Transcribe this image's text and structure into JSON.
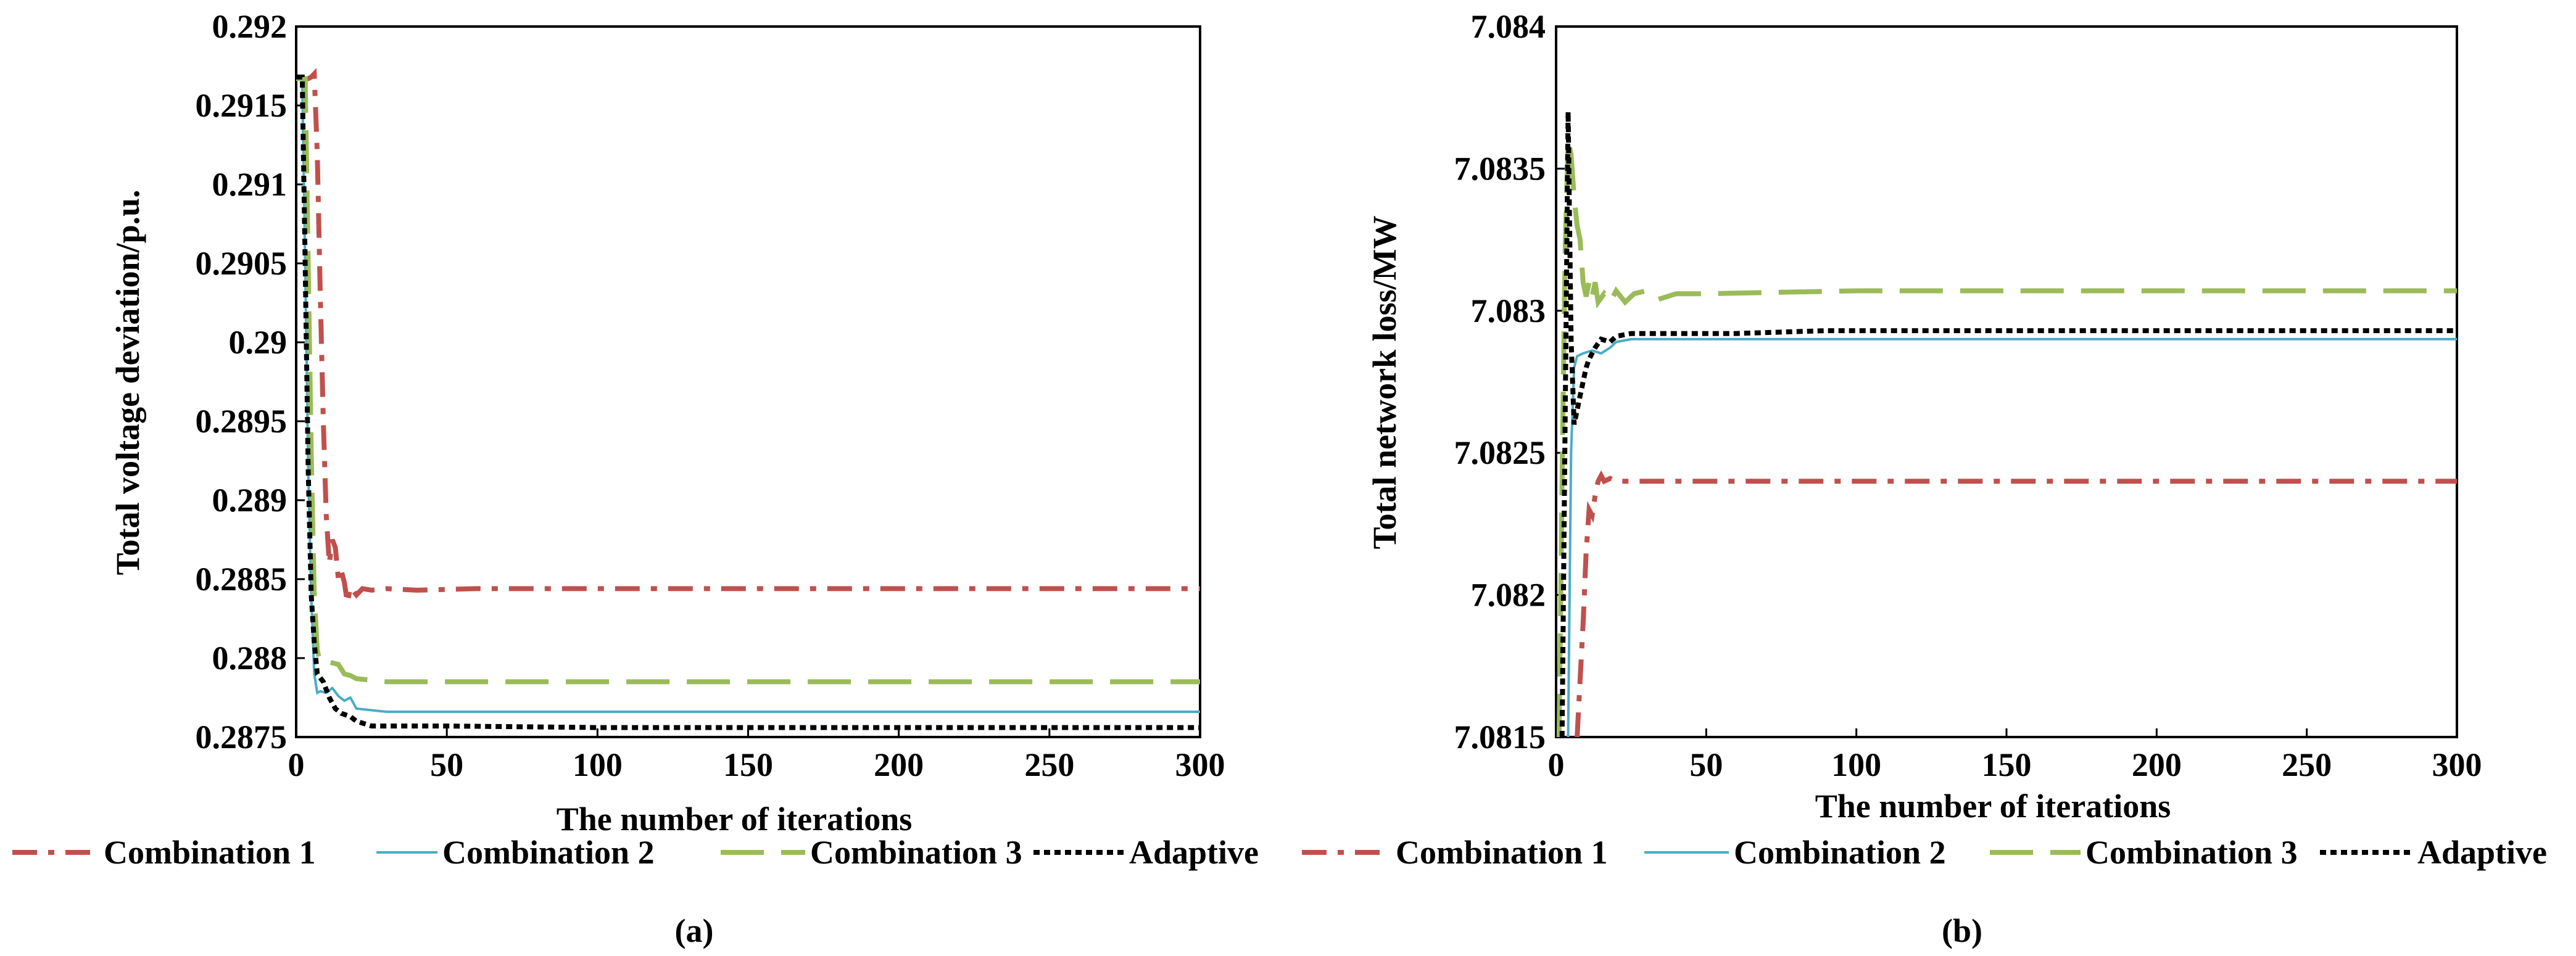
{
  "chart_data": [
    {
      "type": "line",
      "panel_label": "(a)",
      "xlabel": "The number of iterations",
      "ylabel": "Total voltage deviation/p.u.",
      "xlim": [
        0,
        300
      ],
      "ylim": [
        0.2875,
        0.292
      ],
      "xticks": [
        0,
        50,
        100,
        150,
        200,
        250,
        300
      ],
      "xtick_labels": [
        "0",
        "50",
        "100",
        "150",
        "200",
        "250",
        "300"
      ],
      "yticks": [
        0.2875,
        0.288,
        0.2885,
        0.289,
        0.2895,
        0.29,
        0.2905,
        0.291,
        0.2915,
        0.292
      ],
      "ytick_labels": [
        "0.2875",
        "0.288",
        "0.2885",
        "0.289",
        "0.2895",
        "0.29",
        "0.2905",
        "0.291",
        "0.2915",
        "0.292"
      ],
      "series": [
        {
          "name": "Combination 1",
          "color": "#c0504d",
          "style": "dashdot",
          "points": [
            [
              0,
              0.29167
            ],
            [
              4,
              0.29167
            ],
            [
              5,
              0.29168
            ],
            [
              6,
              0.2917
            ],
            [
              7,
              0.2912
            ],
            [
              8,
              0.2903
            ],
            [
              9,
              0.2895
            ],
            [
              10,
              0.2889
            ],
            [
              11,
              0.2886
            ],
            [
              12,
              0.28875
            ],
            [
              13,
              0.2887
            ],
            [
              14,
              0.2885
            ],
            [
              15,
              0.28855
            ],
            [
              16,
              0.28848
            ],
            [
              17,
              0.28835
            ],
            [
              18,
              0.28845
            ],
            [
              20,
              0.2884
            ],
            [
              22,
              0.28844
            ],
            [
              25,
              0.28843
            ],
            [
              30,
              0.28844
            ],
            [
              40,
              0.28843
            ],
            [
              60,
              0.28844
            ],
            [
              100,
              0.28844
            ],
            [
              150,
              0.28844
            ],
            [
              200,
              0.28844
            ],
            [
              250,
              0.28844
            ],
            [
              300,
              0.28844
            ]
          ]
        },
        {
          "name": "Combination 2",
          "color": "#4bacc6",
          "style": "solid",
          "points": [
            [
              0,
              0.29167
            ],
            [
              2,
              0.29167
            ],
            [
              3,
              0.2905
            ],
            [
              4,
              0.2892
            ],
            [
              5,
              0.2884
            ],
            [
              6,
              0.2879
            ],
            [
              7,
              0.28778
            ],
            [
              8,
              0.28779
            ],
            [
              10,
              0.28778
            ],
            [
              12,
              0.28781
            ],
            [
              14,
              0.28776
            ],
            [
              16,
              0.28773
            ],
            [
              18,
              0.28775
            ],
            [
              20,
              0.28768
            ],
            [
              25,
              0.28767
            ],
            [
              30,
              0.28766
            ],
            [
              50,
              0.28766
            ],
            [
              100,
              0.28766
            ],
            [
              150,
              0.28766
            ],
            [
              200,
              0.28766
            ],
            [
              250,
              0.28766
            ],
            [
              300,
              0.28766
            ]
          ]
        },
        {
          "name": "Combination 3",
          "color": "#9bbb59",
          "style": "dashed",
          "points": [
            [
              0,
              0.29167
            ],
            [
              3,
              0.29167
            ],
            [
              4,
              0.2905
            ],
            [
              5,
              0.2893
            ],
            [
              6,
              0.2884
            ],
            [
              7,
              0.28805
            ],
            [
              8,
              0.28797
            ],
            [
              10,
              0.28798
            ],
            [
              12,
              0.28797
            ],
            [
              14,
              0.28796
            ],
            [
              16,
              0.2879
            ],
            [
              18,
              0.28789
            ],
            [
              20,
              0.28787
            ],
            [
              25,
              0.28786
            ],
            [
              30,
              0.28785
            ],
            [
              40,
              0.28785
            ],
            [
              60,
              0.28785
            ],
            [
              100,
              0.28785
            ],
            [
              150,
              0.28785
            ],
            [
              200,
              0.28785
            ],
            [
              250,
              0.28785
            ],
            [
              300,
              0.28785
            ]
          ]
        },
        {
          "name": "Adaptive",
          "color": "#000000",
          "style": "dotted",
          "points": [
            [
              0,
              0.29168
            ],
            [
              2,
              0.29168
            ],
            [
              3,
              0.2905
            ],
            [
              4,
              0.2892
            ],
            [
              5,
              0.2884
            ],
            [
              6,
              0.2881
            ],
            [
              7,
              0.2879
            ],
            [
              9,
              0.28785
            ],
            [
              11,
              0.28775
            ],
            [
              13,
              0.28768
            ],
            [
              15,
              0.28765
            ],
            [
              18,
              0.28763
            ],
            [
              20,
              0.2876
            ],
            [
              25,
              0.28757
            ],
            [
              30,
              0.28757
            ],
            [
              50,
              0.28757
            ],
            [
              100,
              0.28756
            ],
            [
              150,
              0.28756
            ],
            [
              200,
              0.28756
            ],
            [
              250,
              0.28756
            ],
            [
              300,
              0.28756
            ]
          ]
        }
      ],
      "legend": [
        "Combination 1",
        "Combination 2",
        "Combination 3",
        "Adaptive"
      ]
    },
    {
      "type": "line",
      "panel_label": "(b)",
      "xlabel": "The number of iterations",
      "ylabel": "Total network loss/MW",
      "xlim": [
        0,
        300
      ],
      "ylim": [
        7.0815,
        7.084
      ],
      "xticks": [
        0,
        50,
        100,
        150,
        200,
        250,
        300
      ],
      "xtick_labels": [
        "0",
        "50",
        "100",
        "150",
        "200",
        "250",
        "300"
      ],
      "yticks": [
        7.0815,
        7.082,
        7.0825,
        7.083,
        7.0835,
        7.084
      ],
      "ytick_labels": [
        "7.0815",
        "7.082",
        "7.0825",
        "7.083",
        "7.0835",
        "7.084"
      ],
      "series": [
        {
          "name": "Combination 1",
          "color": "#c0504d",
          "style": "dashdot",
          "points": [
            [
              7,
              7.0815
            ],
            [
              8,
              7.0817
            ],
            [
              9,
              7.0819
            ],
            [
              10,
              7.08215
            ],
            [
              11,
              7.0823
            ],
            [
              12,
              7.08228
            ],
            [
              13,
              7.08235
            ],
            [
              14,
              7.0824
            ],
            [
              15,
              7.08242
            ],
            [
              16,
              7.0824
            ],
            [
              18,
              7.08241
            ],
            [
              20,
              7.0824
            ],
            [
              30,
              7.0824
            ],
            [
              60,
              7.0824
            ],
            [
              100,
              7.0824
            ],
            [
              150,
              7.0824
            ],
            [
              200,
              7.0824
            ],
            [
              250,
              7.0824
            ],
            [
              300,
              7.0824
            ]
          ]
        },
        {
          "name": "Combination 2",
          "color": "#4bacc6",
          "style": "solid",
          "points": [
            [
              4,
              7.0815
            ],
            [
              5,
              7.0825
            ],
            [
              6,
              7.0828
            ],
            [
              7,
              7.08284
            ],
            [
              9,
              7.08285
            ],
            [
              12,
              7.08286
            ],
            [
              15,
              7.08285
            ],
            [
              18,
              7.08287
            ],
            [
              20,
              7.08289
            ],
            [
              25,
              7.0829
            ],
            [
              40,
              7.0829
            ],
            [
              80,
              7.0829
            ],
            [
              150,
              7.0829
            ],
            [
              200,
              7.0829
            ],
            [
              250,
              7.0829
            ],
            [
              300,
              7.0829
            ]
          ]
        },
        {
          "name": "Combination 3",
          "color": "#9bbb59",
          "style": "dashed",
          "points": [
            [
              1,
              7.0815
            ],
            [
              2,
              7.0824
            ],
            [
              3,
              7.0832
            ],
            [
              4,
              7.0836
            ],
            [
              5,
              7.08355
            ],
            [
              6,
              7.0834
            ],
            [
              7,
              7.0833
            ],
            [
              8,
              7.08325
            ],
            [
              9,
              7.0831
            ],
            [
              10,
              7.08305
            ],
            [
              11,
              7.0831
            ],
            [
              12,
              7.08305
            ],
            [
              13,
              7.0831
            ],
            [
              14,
              7.08303
            ],
            [
              16,
              7.08306
            ],
            [
              18,
              7.08303
            ],
            [
              20,
              7.08307
            ],
            [
              23,
              7.08303
            ],
            [
              26,
              7.08306
            ],
            [
              30,
              7.08307
            ],
            [
              34,
              7.08304
            ],
            [
              40,
              7.08306
            ],
            [
              50,
              7.08306
            ],
            [
              100,
              7.08307
            ],
            [
              150,
              7.08307
            ],
            [
              200,
              7.08307
            ],
            [
              250,
              7.08307
            ],
            [
              300,
              7.08307
            ]
          ]
        },
        {
          "name": "Adaptive",
          "color": "#000000",
          "style": "dotted",
          "points": [
            [
              2,
              7.0815
            ],
            [
              3,
              7.0826
            ],
            [
              4,
              7.0837
            ],
            [
              5,
              7.0829
            ],
            [
              6,
              7.0826
            ],
            [
              7,
              7.08265
            ],
            [
              8,
              7.0827
            ],
            [
              9,
              7.08275
            ],
            [
              10,
              7.0828
            ],
            [
              11,
              7.08283
            ],
            [
              13,
              7.08287
            ],
            [
              15,
              7.0829
            ],
            [
              18,
              7.08289
            ],
            [
              20,
              7.08291
            ],
            [
              25,
              7.08292
            ],
            [
              30,
              7.08292
            ],
            [
              60,
              7.08292
            ],
            [
              90,
              7.08293
            ],
            [
              150,
              7.08293
            ],
            [
              200,
              7.08293
            ],
            [
              250,
              7.08293
            ],
            [
              300,
              7.08293
            ]
          ]
        }
      ],
      "legend": [
        "Combination 1",
        "Combination 2",
        "Combination 3",
        "Adaptive"
      ]
    }
  ]
}
